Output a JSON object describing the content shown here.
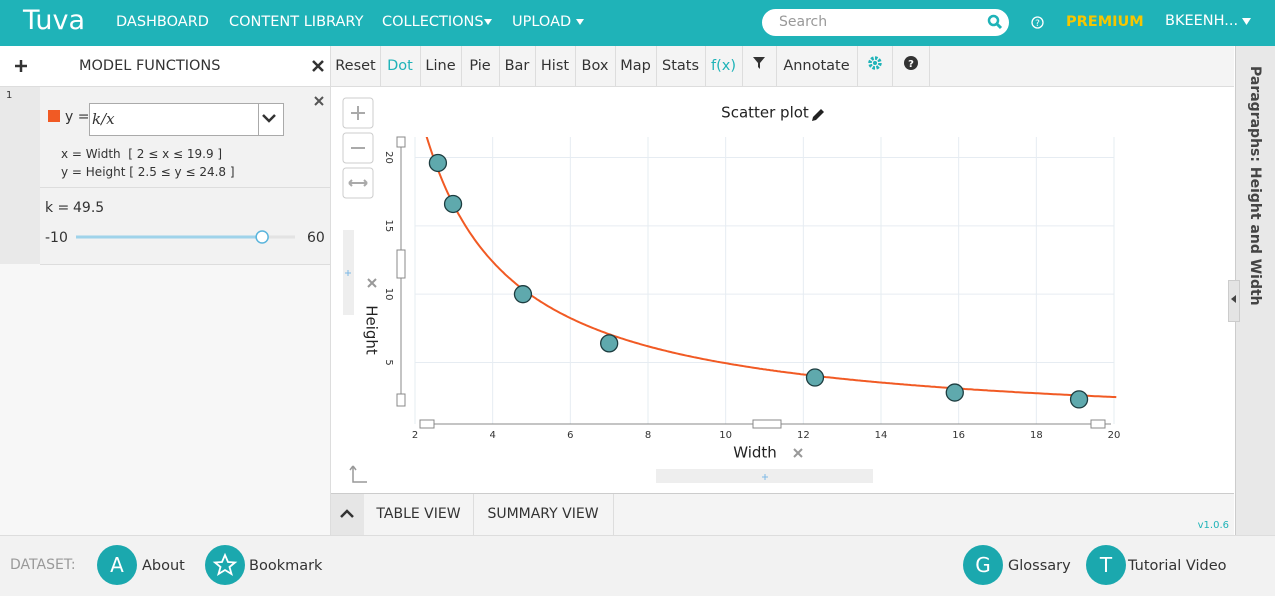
{
  "header": {
    "logo": "Tuva",
    "nav": [
      "DASHBOARD",
      "CONTENT LIBRARY",
      "COLLECTIONS",
      "UPLOAD"
    ],
    "search_placeholder": "Search",
    "premium": "PREMIUM",
    "user": "BKEENH..."
  },
  "model_panel": {
    "title": "MODEL FUNCTIONS",
    "row_number": "1",
    "y_label": "y =",
    "expression": "k/x",
    "x_domain": "x = Width  [ 2 ≤ x ≤ 19.9 ]",
    "y_domain": "y = Height [ 2.5 ≤ y ≤ 24.8 ]",
    "color": "#f15a24",
    "parameter": {
      "label": "k =",
      "value": 49.5,
      "min": -10,
      "max": 60
    }
  },
  "toolbar": [
    "Reset",
    "Dot",
    "Line",
    "Pie",
    "Bar",
    "Hist",
    "Box",
    "Map",
    "Stats",
    "f(x)",
    "Annotate"
  ],
  "chart_data": {
    "type": "scatter",
    "title": "Scatter plot",
    "x_label": "Width",
    "y_label": "Height",
    "color": "#5fa9ad",
    "grid": true,
    "x": [
      2.59,
      2.98,
      4.78,
      7.0,
      12.3,
      15.9,
      19.1
    ],
    "values": [
      19.6,
      16.6,
      10.0,
      6.4,
      3.9,
      2.8,
      2.3
    ],
    "xlim": [
      2,
      20
    ],
    "xticks": [
      2,
      4,
      6,
      8,
      10,
      12,
      14,
      16,
      18,
      20
    ],
    "ylim": [
      0.5,
      21.5
    ],
    "yticks": [
      5,
      10,
      15,
      20
    ]
  },
  "tabs": [
    "TABLE VIEW",
    "SUMMARY VIEW"
  ],
  "version": "v1.0.6",
  "sidebar_title": "Paragraphs: Height and Width",
  "footer": {
    "dataset_label": "DATASET:",
    "links": [
      {
        "icon": "A",
        "label": "About"
      },
      {
        "label": "Bookmark"
      },
      {
        "icon": "G",
        "label": "Glossary"
      },
      {
        "icon": "T",
        "label": "Tutorial Video"
      }
    ]
  }
}
